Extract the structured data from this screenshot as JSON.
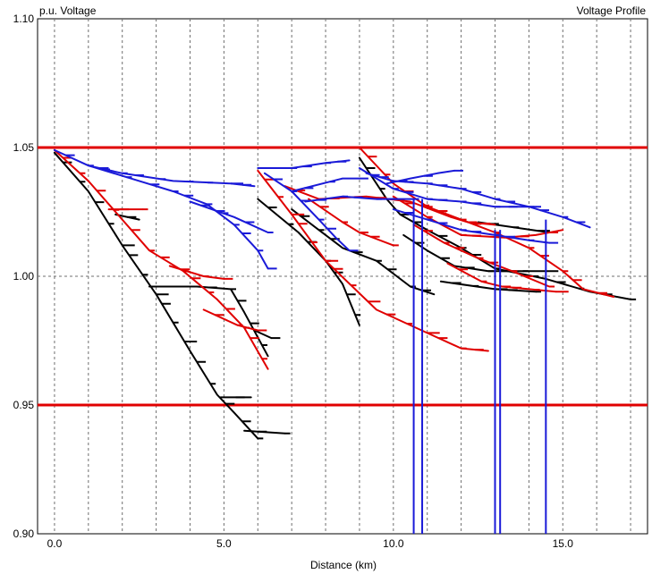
{
  "chart_data": {
    "type": "line",
    "title": "Voltage Profile",
    "ylabel": "p.u. Voltage",
    "xlabel": "Distance (km)",
    "xlim": [
      -0.5,
      17.5
    ],
    "ylim": [
      0.9,
      1.1
    ],
    "x_ticks": [
      {
        "value": 0,
        "label": "0.0"
      },
      {
        "value": 5,
        "label": "5.0"
      },
      {
        "value": 10,
        "label": "10.0"
      },
      {
        "value": 15,
        "label": "15.0"
      }
    ],
    "y_ticks": [
      {
        "value": 0.9,
        "label": "0.90"
      },
      {
        "value": 0.95,
        "label": "0.95"
      },
      {
        "value": 1.0,
        "label": "1.00"
      },
      {
        "value": 1.05,
        "label": "1.05"
      },
      {
        "value": 1.1,
        "label": "1.10"
      }
    ],
    "vertical_gridlines": [
      0,
      1,
      2,
      3,
      4,
      5,
      6,
      7,
      8,
      9,
      10,
      11,
      12,
      13,
      14,
      15,
      16,
      17
    ],
    "horizontal_gridlines": [
      0.95,
      1.0,
      1.05
    ],
    "grid": true,
    "limit_lines": [
      1.05,
      0.95
    ],
    "colors": {
      "phase_a": "#000000",
      "phase_b": "#e00000",
      "phase_c": "#1a1ad8",
      "limits": "#e00000"
    },
    "series": [
      {
        "color": "#000000",
        "points": [
          [
            0,
            1.048
          ],
          [
            1.0,
            1.033
          ],
          [
            2.0,
            1.012
          ],
          [
            3.0,
            0.993
          ],
          [
            4.0,
            0.971
          ],
          [
            4.8,
            0.954
          ],
          [
            5.3,
            0.947
          ],
          [
            6.0,
            0.937
          ]
        ]
      },
      {
        "color": "#000000",
        "points": [
          [
            1.8,
            1.024
          ],
          [
            2.5,
            1.022
          ]
        ]
      },
      {
        "color": "#000000",
        "points": [
          [
            2.8,
            0.996
          ],
          [
            4.2,
            0.996
          ],
          [
            5.2,
            0.995
          ],
          [
            5.6,
            0.986
          ],
          [
            6.3,
            0.969
          ]
        ]
      },
      {
        "color": "#000000",
        "points": [
          [
            4.9,
            0.953
          ],
          [
            5.8,
            0.953
          ]
        ]
      },
      {
        "color": "#000000",
        "points": [
          [
            5.6,
            0.94
          ],
          [
            6.8,
            0.939
          ]
        ]
      },
      {
        "color": "#000000",
        "points": [
          [
            5.9,
            0.979
          ],
          [
            6.4,
            0.976
          ]
        ]
      },
      {
        "color": "#000000",
        "points": [
          [
            6.0,
            1.03
          ],
          [
            7.2,
            1.017
          ],
          [
            8.0,
            1.006
          ],
          [
            8.5,
            0.997
          ],
          [
            9.0,
            0.981
          ]
        ]
      },
      {
        "color": "#000000",
        "points": [
          [
            7.0,
            1.026
          ],
          [
            7.8,
            1.018
          ],
          [
            8.5,
            1.011
          ],
          [
            9.5,
            1.006
          ],
          [
            10.5,
            0.996
          ],
          [
            11.2,
            0.993
          ]
        ]
      },
      {
        "color": "#000000",
        "points": [
          [
            9.0,
            1.046
          ],
          [
            9.8,
            1.03
          ],
          [
            10.2,
            1.024
          ],
          [
            11.0,
            1.018
          ],
          [
            12.0,
            1.011
          ],
          [
            13.0,
            1.003
          ],
          [
            14.5,
            0.999
          ],
          [
            15.8,
            0.994
          ],
          [
            17.0,
            0.991
          ]
        ]
      },
      {
        "color": "#000000",
        "points": [
          [
            10.3,
            1.016
          ],
          [
            11.0,
            1.01
          ],
          [
            11.8,
            1.004
          ],
          [
            12.8,
            1.002
          ],
          [
            14.5,
            1.002
          ]
        ]
      },
      {
        "color": "#000000",
        "points": [
          [
            11.4,
            0.998
          ],
          [
            13.0,
            0.995
          ],
          [
            14.2,
            0.994
          ]
        ]
      },
      {
        "color": "#000000",
        "points": [
          [
            12.5,
            1.021
          ],
          [
            14.6,
            1.017
          ]
        ]
      },
      {
        "color": "#e00000",
        "points": [
          [
            0,
            1.049
          ],
          [
            1.0,
            1.037
          ],
          [
            2.0,
            1.022
          ],
          [
            2.8,
            1.01
          ],
          [
            3.8,
            1.002
          ],
          [
            4.8,
            0.991
          ],
          [
            5.6,
            0.98
          ],
          [
            6.3,
            0.964
          ]
        ]
      },
      {
        "color": "#e00000",
        "points": [
          [
            1.6,
            1.026
          ],
          [
            2.6,
            1.026
          ]
        ]
      },
      {
        "color": "#e00000",
        "points": [
          [
            3.4,
            1.004
          ],
          [
            4.4,
            1.0
          ],
          [
            5.0,
            0.999
          ]
        ]
      },
      {
        "color": "#e00000",
        "points": [
          [
            4.4,
            0.987
          ],
          [
            5.4,
            0.981
          ],
          [
            6.0,
            0.979
          ]
        ]
      },
      {
        "color": "#e00000",
        "points": [
          [
            6.0,
            1.041
          ],
          [
            7.0,
            1.024
          ],
          [
            8.0,
            1.006
          ],
          [
            9.5,
            0.987
          ],
          [
            11.0,
            0.978
          ],
          [
            12.0,
            0.972
          ],
          [
            12.8,
            0.971
          ]
        ]
      },
      {
        "color": "#e00000",
        "points": [
          [
            6.8,
            1.035
          ],
          [
            7.8,
            1.03
          ],
          [
            9.2,
            1.031
          ],
          [
            10.5,
            1.029
          ],
          [
            11.7,
            1.023
          ],
          [
            12.2,
            1.021
          ],
          [
            13.0,
            1.02
          ]
        ]
      },
      {
        "color": "#e00000",
        "points": [
          [
            7.5,
            1.03
          ],
          [
            8.5,
            1.021
          ],
          [
            9.0,
            1.017
          ],
          [
            10.0,
            1.012
          ]
        ]
      },
      {
        "color": "#e00000",
        "points": [
          [
            9.0,
            1.05
          ],
          [
            10.0,
            1.036
          ],
          [
            11.0,
            1.027
          ],
          [
            12.0,
            1.022
          ],
          [
            13.0,
            1.017
          ],
          [
            14.0,
            1.011
          ],
          [
            15.0,
            1.002
          ],
          [
            15.6,
            0.995
          ],
          [
            16.5,
            0.992
          ]
        ]
      },
      {
        "color": "#e00000",
        "points": [
          [
            10.0,
            1.031
          ],
          [
            11.0,
            1.023
          ],
          [
            12.0,
            1.016
          ],
          [
            13.3,
            1.015
          ],
          [
            14.2,
            1.016
          ],
          [
            15.0,
            1.018
          ]
        ]
      },
      {
        "color": "#e00000",
        "points": [
          [
            10.6,
            1.02
          ],
          [
            11.5,
            1.013
          ],
          [
            12.5,
            1.007
          ],
          [
            13.5,
            1.002
          ],
          [
            14.6,
            0.996
          ]
        ]
      },
      {
        "color": "#e00000",
        "points": [
          [
            11.6,
            1.005
          ],
          [
            12.6,
            0.998
          ],
          [
            13.2,
            0.996
          ],
          [
            14.8,
            0.994
          ]
        ]
      },
      {
        "color": "#1a1ad8",
        "points": [
          [
            0,
            1.049
          ],
          [
            1.0,
            1.043
          ],
          [
            2.0,
            1.04
          ],
          [
            3.5,
            1.037
          ],
          [
            5.2,
            1.036
          ],
          [
            5.9,
            1.035
          ]
        ]
      },
      {
        "color": "#1a1ad8",
        "points": [
          [
            1.0,
            1.043
          ],
          [
            2.5,
            1.037
          ],
          [
            3.5,
            1.033
          ],
          [
            4.5,
            1.028
          ],
          [
            5.3,
            1.02
          ],
          [
            6.0,
            1.01
          ],
          [
            6.3,
            1.003
          ]
        ]
      },
      {
        "color": "#1a1ad8",
        "points": [
          [
            4.0,
            1.029
          ],
          [
            5.3,
            1.023
          ],
          [
            6.3,
            1.017
          ]
        ]
      },
      {
        "color": "#1a1ad8",
        "points": [
          [
            6.0,
            1.042
          ],
          [
            7.0,
            1.042
          ],
          [
            8.0,
            1.044
          ],
          [
            8.7,
            1.045
          ]
        ]
      },
      {
        "color": "#1a1ad8",
        "points": [
          [
            6.2,
            1.04
          ],
          [
            7.0,
            1.033
          ],
          [
            7.8,
            1.022
          ],
          [
            8.3,
            1.015
          ],
          [
            8.7,
            1.01
          ]
        ]
      },
      {
        "color": "#1a1ad8",
        "points": [
          [
            7.0,
            1.033
          ],
          [
            8.5,
            1.038
          ],
          [
            9.0,
            1.038
          ]
        ]
      },
      {
        "color": "#1a1ad8",
        "points": [
          [
            7.4,
            1.029
          ],
          [
            8.5,
            1.031
          ],
          [
            9.5,
            1.03
          ],
          [
            10.6,
            1.03
          ]
        ]
      },
      {
        "color": "#1a1ad8",
        "points": [
          [
            9.0,
            1.042
          ],
          [
            10.0,
            1.034
          ],
          [
            11.0,
            1.03
          ],
          [
            12.0,
            1.029
          ],
          [
            13.0,
            1.027
          ],
          [
            14.2,
            1.027
          ]
        ]
      },
      {
        "color": "#1a1ad8",
        "points": [
          [
            9.2,
            1.04
          ],
          [
            10.0,
            1.037
          ],
          [
            11.0,
            1.036
          ],
          [
            12.0,
            1.034
          ],
          [
            13.0,
            1.03
          ],
          [
            14.0,
            1.027
          ],
          [
            15.0,
            1.023
          ],
          [
            15.8,
            1.019
          ]
        ]
      },
      {
        "color": "#1a1ad8",
        "points": [
          [
            9.8,
            1.036
          ],
          [
            10.5,
            1.038
          ],
          [
            11.3,
            1.04
          ],
          [
            11.8,
            1.041
          ]
        ]
      },
      {
        "color": "#1a1ad8",
        "points": [
          [
            10.0,
            1.026
          ],
          [
            11.0,
            1.022
          ],
          [
            12.0,
            1.018
          ],
          [
            13.0,
            1.016
          ],
          [
            14.0,
            1.014
          ],
          [
            14.6,
            1.013
          ]
        ]
      }
    ],
    "regulator_lines": [
      {
        "x": 10.6,
        "y_top": 1.03
      },
      {
        "x": 10.85,
        "y_top": 1.03
      },
      {
        "x": 13.0,
        "y_top": 1.018
      },
      {
        "x": 13.15,
        "y_top": 1.018
      },
      {
        "x": 14.5,
        "y_top": 1.022
      }
    ]
  }
}
